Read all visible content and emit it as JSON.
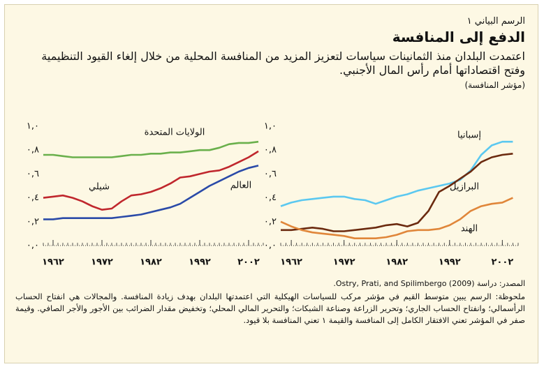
{
  "figure_label": "الرسم البياني ١",
  "title": "الدفع إلى المنافسة",
  "subtitle": "اعتمدت البلدان منذ الثمانينات سياسات لتعزيز المزيد من المنافسة المحلية من خلال إلغاء القيود التنظيمية وفتح اقتصاداتها أمام رأس المال الأجنبي.",
  "y_label": "(مؤشر المنافسة)",
  "source": "المصدر: دراسة (2009) Ostry, Prati, and Spilimbergo.",
  "note": "ملحوظة: الرسم يبين متوسط القيم في مؤشر مركب للسياسات الهيكلية التي اعتمدتها البلدان بهدف زيادة المنافسة. والمجالات هي انفتاح الحساب الرأسمالي؛ وانفتاح الحساب الجاري؛ وتحرير الزراعة وصناعة الشبكات؛ والتحرير المالي المحلي؛ وتخفيض مقدار الضرائب بين الأجور والأجر الصافي. وقيمة صفر في المؤشر تعني الافتقار الكامل إلى المنافسة والقيمة ١ تعني المنافسة بلا قيود.",
  "chart_data": [
    {
      "type": "line",
      "x": [
        1960,
        1962,
        1964,
        1966,
        1968,
        1970,
        1972,
        1974,
        1976,
        1978,
        1980,
        1982,
        1984,
        1986,
        1988,
        1990,
        1992,
        1994,
        1996,
        1998,
        2000,
        2002,
        2004
      ],
      "xlim": [
        1960,
        2005
      ],
      "xticks": [
        {
          "value": 1962,
          "label": "١٩٦٢"
        },
        {
          "value": 1972,
          "label": "١٩٧٢"
        },
        {
          "value": 1982,
          "label": "١٩٨٢"
        },
        {
          "value": 1992,
          "label": "١٩٩٢"
        },
        {
          "value": 2002,
          "label": "٢٠٠٢"
        }
      ],
      "ylim": [
        0,
        1
      ],
      "yticks": [
        {
          "value": 0,
          "label": "٠,٠"
        },
        {
          "value": 0.2,
          "label": "٠,٢"
        },
        {
          "value": 0.4,
          "label": "٠,٤"
        },
        {
          "value": 0.6,
          "label": "٠,٦"
        },
        {
          "value": 0.8,
          "label": "٠,٨"
        },
        {
          "value": 1,
          "label": "١,٠"
        }
      ],
      "series": [
        {
          "name": "إسبانيا",
          "color": "#5bc8f0",
          "values": [
            0.33,
            0.36,
            0.38,
            0.39,
            0.4,
            0.41,
            0.41,
            0.39,
            0.38,
            0.35,
            0.38,
            0.41,
            0.43,
            0.46,
            0.48,
            0.5,
            0.52,
            0.55,
            0.63,
            0.76,
            0.84,
            0.87,
            0.87
          ]
        },
        {
          "name": "البرازيل",
          "color": "#6b2a0f",
          "values": [
            0.13,
            0.13,
            0.14,
            0.15,
            0.14,
            0.12,
            0.12,
            0.13,
            0.14,
            0.15,
            0.17,
            0.18,
            0.16,
            0.19,
            0.29,
            0.45,
            0.5,
            0.56,
            0.62,
            0.7,
            0.74,
            0.76,
            0.77
          ]
        },
        {
          "name": "الهند",
          "color": "#e0863a",
          "values": [
            0.2,
            0.16,
            0.13,
            0.11,
            0.1,
            0.09,
            0.08,
            0.06,
            0.06,
            0.06,
            0.07,
            0.09,
            0.12,
            0.13,
            0.13,
            0.14,
            0.17,
            0.22,
            0.29,
            0.33,
            0.35,
            0.36,
            0.4
          ]
        }
      ]
    },
    {
      "type": "line",
      "x": [
        1960,
        1962,
        1964,
        1966,
        1968,
        1970,
        1972,
        1974,
        1976,
        1978,
        1980,
        1982,
        1984,
        1986,
        1988,
        1990,
        1992,
        1994,
        1996,
        1998,
        2000,
        2002,
        2004
      ],
      "xlim": [
        1960,
        2005
      ],
      "xticks": [
        {
          "value": 1962,
          "label": "١٩٦٢"
        },
        {
          "value": 1972,
          "label": "١٩٧٢"
        },
        {
          "value": 1982,
          "label": "١٩٨٢"
        },
        {
          "value": 1992,
          "label": "١٩٩٢"
        },
        {
          "value": 2002,
          "label": "٢٠٠٢"
        }
      ],
      "ylim": [
        0,
        1
      ],
      "yticks": [
        {
          "value": 0,
          "label": "٠,٠"
        },
        {
          "value": 0.2,
          "label": "٠,٢"
        },
        {
          "value": 0.4,
          "label": "٠,٤"
        },
        {
          "value": 0.6,
          "label": "٠,٦"
        },
        {
          "value": 0.8,
          "label": "٠,٨"
        },
        {
          "value": 1,
          "label": "١,٠"
        }
      ],
      "series": [
        {
          "name": "الولايات المتحدة",
          "color": "#6ab04c",
          "values": [
            0.76,
            0.76,
            0.75,
            0.74,
            0.74,
            0.74,
            0.74,
            0.74,
            0.75,
            0.76,
            0.76,
            0.77,
            0.77,
            0.78,
            0.78,
            0.79,
            0.8,
            0.8,
            0.82,
            0.85,
            0.86,
            0.86,
            0.87
          ]
        },
        {
          "name": "شيلي",
          "color": "#c0272d",
          "values": [
            0.4,
            0.41,
            0.42,
            0.4,
            0.37,
            0.33,
            0.3,
            0.31,
            0.37,
            0.42,
            0.43,
            0.45,
            0.48,
            0.52,
            0.57,
            0.58,
            0.6,
            0.62,
            0.63,
            0.66,
            0.7,
            0.74,
            0.79
          ]
        },
        {
          "name": "العالم",
          "color": "#2a4aa8",
          "values": [
            0.22,
            0.22,
            0.23,
            0.23,
            0.23,
            0.23,
            0.23,
            0.23,
            0.24,
            0.25,
            0.26,
            0.28,
            0.3,
            0.32,
            0.35,
            0.4,
            0.45,
            0.5,
            0.54,
            0.58,
            0.62,
            0.65,
            0.67
          ]
        }
      ]
    }
  ]
}
